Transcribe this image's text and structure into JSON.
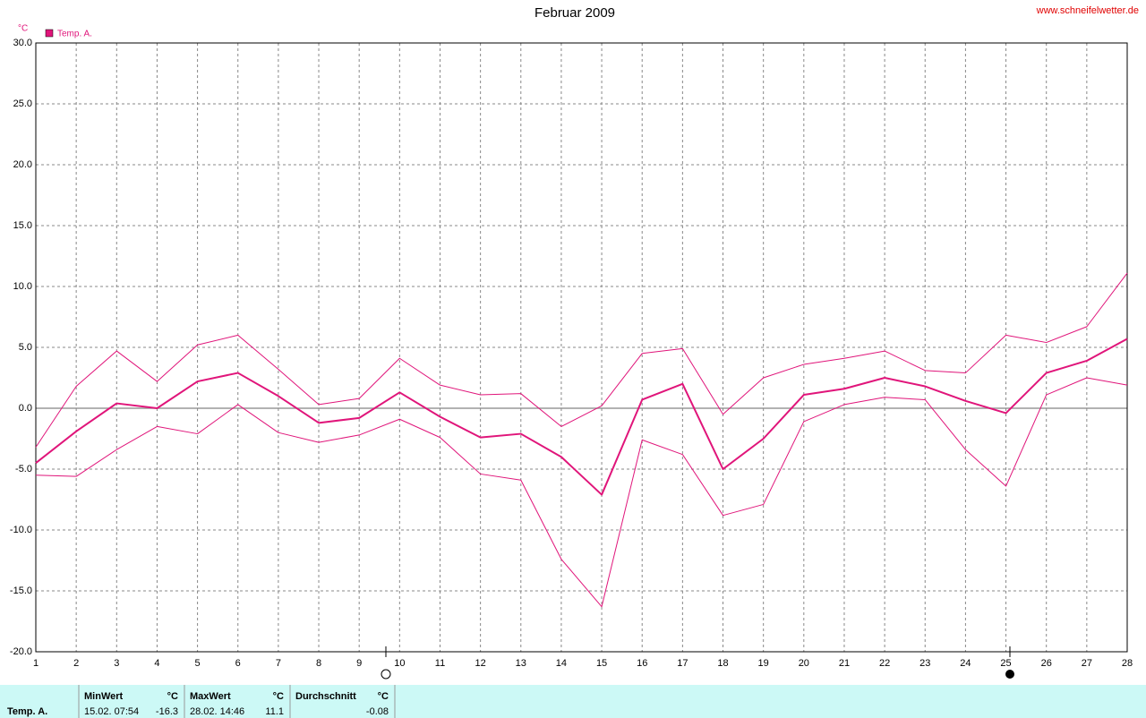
{
  "chart_data": {
    "type": "line",
    "title": "Februar 2009",
    "y_unit": "°C",
    "source": "www.schneifelwetter.de",
    "x": [
      1,
      2,
      3,
      4,
      5,
      6,
      7,
      8,
      9,
      10,
      11,
      12,
      13,
      14,
      15,
      16,
      17,
      18,
      19,
      20,
      21,
      22,
      23,
      24,
      25,
      26,
      27,
      28
    ],
    "xlim": [
      1,
      28
    ],
    "xticks": [
      1,
      2,
      3,
      4,
      5,
      6,
      7,
      8,
      9,
      10,
      11,
      12,
      13,
      14,
      15,
      16,
      17,
      18,
      19,
      20,
      21,
      22,
      23,
      24,
      25,
      26,
      27,
      28
    ],
    "ylim": [
      -20,
      30
    ],
    "yticks": [
      {
        "value": -20,
        "label": "-20.0"
      },
      {
        "value": -15,
        "label": "-15.0"
      },
      {
        "value": -10,
        "label": "-10.0"
      },
      {
        "value": -5,
        "label": "-5.0"
      },
      {
        "value": 0,
        "label": "0.0"
      },
      {
        "value": 5,
        "label": "5.0"
      },
      {
        "value": 10,
        "label": "10.0"
      },
      {
        "value": 15,
        "label": "15.0"
      },
      {
        "value": 20,
        "label": "20.0"
      },
      {
        "value": 25,
        "label": "25.0"
      },
      {
        "value": 30,
        "label": "30.0"
      }
    ],
    "grid": true,
    "series": [
      {
        "color": "#e0157a",
        "width": 1,
        "values": [
          -3.2,
          1.8,
          4.7,
          2.2,
          5.2,
          6.0,
          3.2,
          0.3,
          0.8,
          4.1,
          1.9,
          1.1,
          1.2,
          -1.5,
          0.2,
          4.5,
          4.9,
          -0.5,
          2.5,
          3.6,
          4.1,
          4.7,
          3.1,
          2.9,
          6.0,
          5.4,
          6.7,
          11.1
        ]
      },
      {
        "name": "Temp. A.",
        "color": "#e0157a",
        "width": 2,
        "values": [
          -4.5,
          -1.9,
          0.4,
          0.0,
          2.2,
          2.9,
          1.0,
          -1.2,
          -0.8,
          1.3,
          -0.7,
          -2.4,
          -2.1,
          -4.0,
          -7.1,
          0.7,
          2.0,
          -5.0,
          -2.5,
          1.1,
          1.6,
          2.5,
          1.8,
          0.6,
          -0.4,
          2.9,
          3.9,
          5.7
        ]
      },
      {
        "color": "#e0157a",
        "width": 1,
        "values": [
          -5.5,
          -5.6,
          -3.4,
          -1.5,
          -2.1,
          0.3,
          -2.0,
          -2.8,
          -2.2,
          -0.9,
          -2.4,
          -5.4,
          -5.9,
          -12.4,
          -16.3,
          -2.6,
          -3.8,
          -8.8,
          -7.9,
          -1.1,
          0.3,
          0.9,
          0.7,
          -3.4,
          -6.4,
          1.1,
          2.5,
          1.9
        ]
      }
    ]
  },
  "summary": {
    "label": "Temp. A.",
    "min": {
      "header": "MinWert",
      "unit": "°C",
      "time": "15.02.  07:54",
      "value": -16.3
    },
    "max": {
      "header": "MaxWert",
      "unit": "°C",
      "time": "28.02.  14:46",
      "value": 11.1
    },
    "avg": {
      "header": "Durchschnitt",
      "unit": "°C",
      "value": -0.08
    }
  }
}
